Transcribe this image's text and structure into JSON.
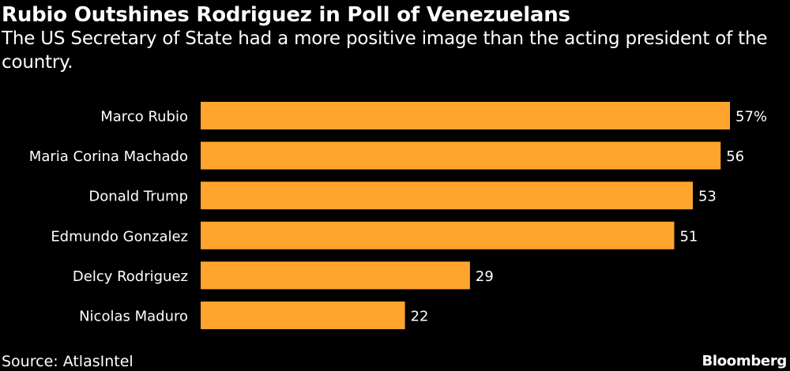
{
  "chart_data": {
    "type": "bar",
    "orientation": "horizontal",
    "title": "Rubio Outshines Rodriguez in Poll of Venezuelans",
    "subtitle": "The US Secretary of State had a more positive image than the acting president of the country.",
    "categories": [
      "Marco Rubio",
      "Maria Corina Machado",
      "Donald Trump",
      "Edmundo Gonzalez",
      "Delcy Rodriguez",
      "Nicolas Maduro"
    ],
    "values": [
      57,
      56,
      53,
      51,
      29,
      22
    ],
    "value_labels": [
      "57%",
      "56",
      "53",
      "51",
      "29",
      "22"
    ],
    "unit": "%",
    "xlim": [
      0,
      57
    ],
    "grid": false,
    "legend": "none",
    "bar_color": "#FFA52E",
    "source": "Source: AtlasIntel",
    "brand": "Bloomberg"
  }
}
